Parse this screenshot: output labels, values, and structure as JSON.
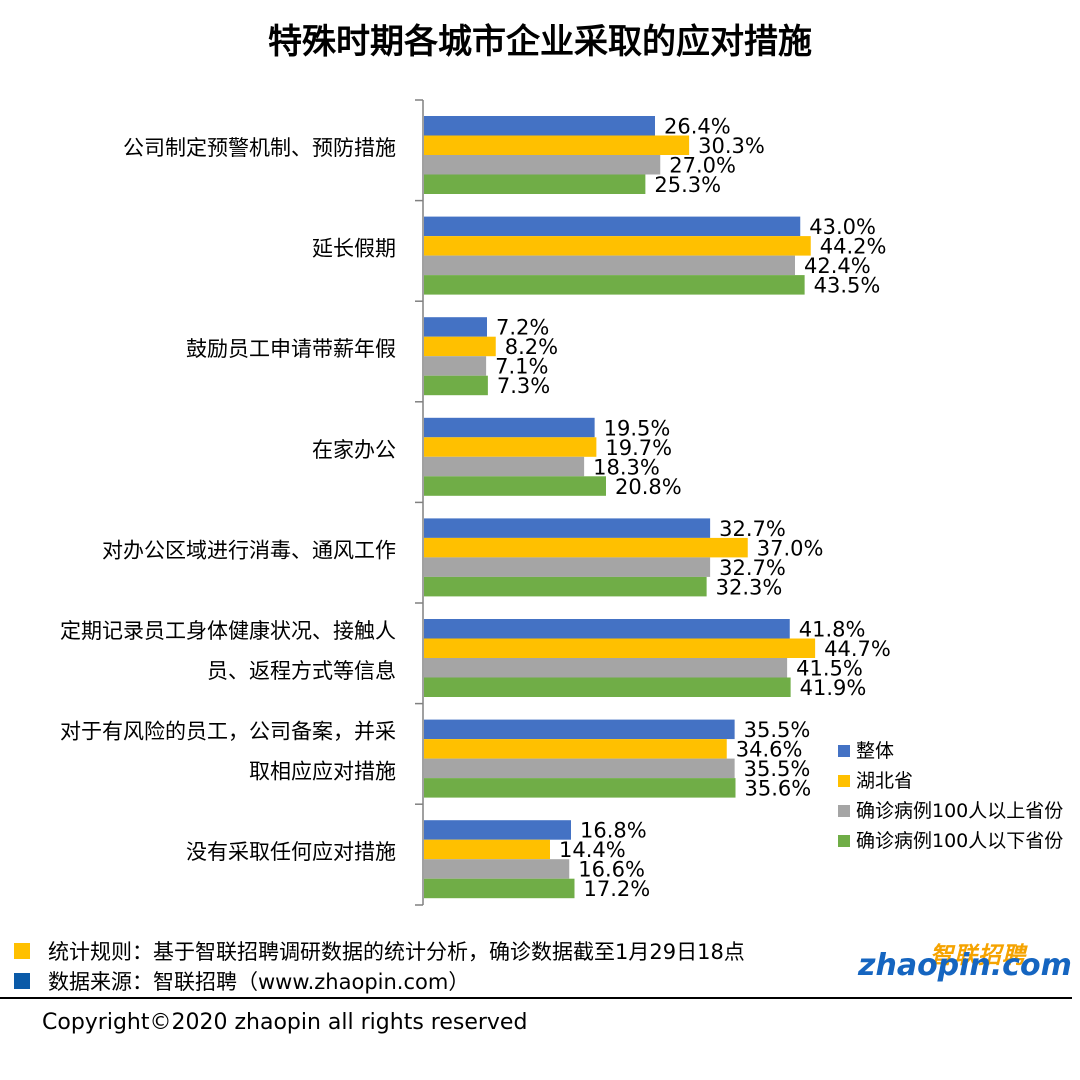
{
  "chart_data": {
    "type": "bar",
    "orientation": "horizontal",
    "title": "特殊时期各城市企业采取的应对措施",
    "categories": [
      [
        "公司制定预警机制、预防措施"
      ],
      [
        "延长假期"
      ],
      [
        "鼓励员工申请带薪年假"
      ],
      [
        "在家办公"
      ],
      [
        "对办公区域进行消毒、通风工作"
      ],
      [
        "定期记录员工身体健康状况、接触人",
        "员、返程方式等信息"
      ],
      [
        "对于有风险的员工，公司备案，并采",
        "取相应应对措施"
      ],
      [
        "没有采取任何应对措施"
      ]
    ],
    "series": [
      {
        "name": "整体",
        "color": "#4472c4",
        "values": [
          26.4,
          43.0,
          7.2,
          19.5,
          32.7,
          41.8,
          35.5,
          16.8
        ]
      },
      {
        "name": "湖北省",
        "color": "#ffc000",
        "values": [
          30.3,
          44.2,
          8.2,
          19.7,
          37.0,
          44.7,
          34.6,
          14.4
        ]
      },
      {
        "name": "确诊病例100人以上省份",
        "color": "#a5a5a5",
        "values": [
          27.0,
          42.4,
          7.1,
          18.3,
          32.7,
          41.5,
          35.5,
          16.6
        ]
      },
      {
        "name": "确诊病例100人以下省份",
        "color": "#70ad47",
        "values": [
          25.3,
          43.5,
          7.3,
          20.8,
          32.3,
          41.9,
          35.6,
          17.2
        ]
      }
    ],
    "value_suffix": "%",
    "xlabel": "",
    "ylabel": "",
    "xlim": [
      0,
      50
    ],
    "grid": false,
    "legend_position": "right"
  },
  "footnotes": [
    {
      "color": "#ffc000",
      "text": "统计规则：基于智联招聘调研数据的统计分析，确诊数据截至1月29日18点"
    },
    {
      "color": "#0a5aa8",
      "text": "数据来源：智联招聘（www.zhaopin.com）"
    }
  ],
  "logo": {
    "cn": "智联招聘",
    "en": "zhaopin.com"
  },
  "copyright": "Copyright©2020 zhaopin all rights reserved"
}
